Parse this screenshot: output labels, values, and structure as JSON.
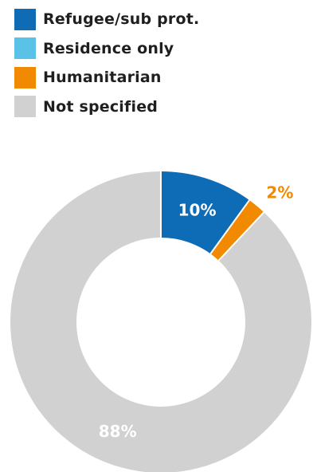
{
  "chart_data": {
    "type": "pie",
    "donut": true,
    "legend_position": "top-left",
    "series": [
      {
        "name": "Refugee/sub prot.",
        "value": 10,
        "label": "10%",
        "color": "#0e6bb5",
        "label_color": "#ffffff"
      },
      {
        "name": "Residence only",
        "value": 0,
        "label": "",
        "color": "#5bc2e7",
        "label_color": "#ffffff"
      },
      {
        "name": "Humanitarian",
        "value": 2,
        "label": "2%",
        "color": "#f18a00",
        "label_color": "#f18a00"
      },
      {
        "name": "Not specified",
        "value": 88,
        "label": "88%",
        "color": "#d1d1d1",
        "label_color": "#ffffff"
      }
    ]
  }
}
